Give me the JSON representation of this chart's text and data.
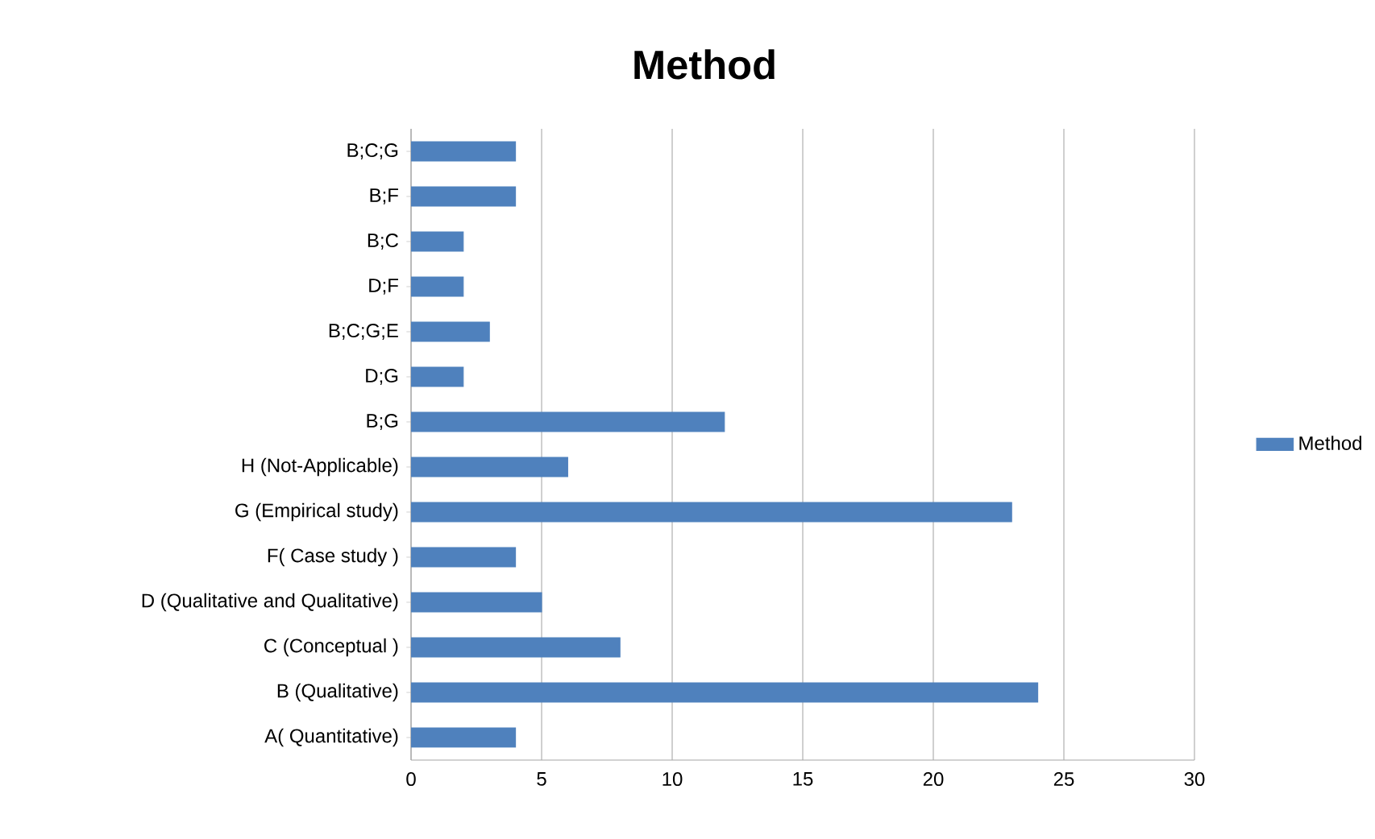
{
  "chart_data": {
    "type": "bar",
    "orientation": "horizontal",
    "title": "Method",
    "categories": [
      "B;C;G",
      "B;F",
      "B;C",
      "D;F",
      "B;C;G;E",
      "D;G",
      "B;G",
      "H (Not-Applicable)",
      "G (Empirical study)",
      "F( Case study )",
      "D (Qualitative and Qualitative)",
      "C (Conceptual )",
      "B (Qualitative)",
      "A( Quantitative)"
    ],
    "series": [
      {
        "name": "Method",
        "color": "#4f81bd",
        "values": [
          4,
          4,
          2,
          2,
          3,
          2,
          12,
          6,
          23,
          4,
          5,
          8,
          24,
          4
        ]
      }
    ],
    "xlim": [
      0,
      30
    ],
    "xticks": [
      0,
      5,
      10,
      15,
      20,
      25,
      30
    ],
    "grid": "x",
    "legend": "right"
  }
}
